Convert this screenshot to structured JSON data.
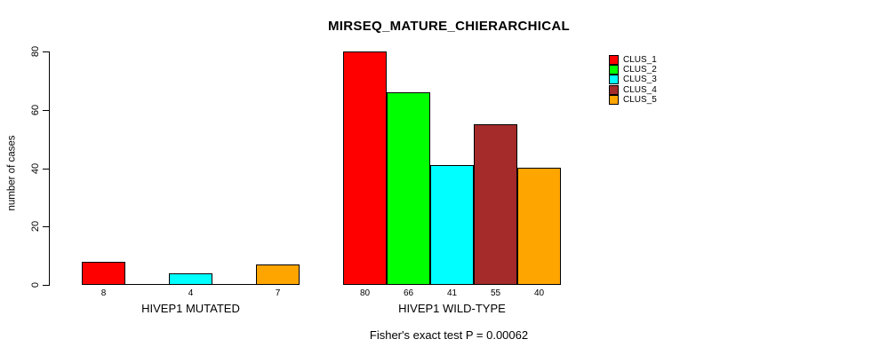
{
  "title": "MIRSEQ_MATURE_CHIERARCHICAL",
  "subtitle": "Fisher's exact test P = 0.00062",
  "chart_data": {
    "type": "bar",
    "grouped": true,
    "title": "MIRSEQ_MATURE_CHIERARCHICAL",
    "ylabel": "number of cases",
    "ylim": [
      0,
      80
    ],
    "yticks": [
      0,
      20,
      40,
      60,
      80
    ],
    "grid": false,
    "legend_position": "top-right",
    "series": [
      {
        "name": "CLUS_1",
        "color": "#FF0000"
      },
      {
        "name": "CLUS_2",
        "color": "#00FF00"
      },
      {
        "name": "CLUS_3",
        "color": "#00FFFF"
      },
      {
        "name": "CLUS_4",
        "color": "#A52A2A"
      },
      {
        "name": "CLUS_5",
        "color": "#FFA500"
      }
    ],
    "groups": [
      {
        "label": "HIVEP1 MUTATED",
        "values": [
          8,
          0,
          4,
          0,
          7
        ]
      },
      {
        "label": "HIVEP1 WILD-TYPE",
        "values": [
          80,
          66,
          41,
          55,
          40
        ]
      }
    ],
    "annotation": "Fisher's exact test P = 0.00062"
  }
}
